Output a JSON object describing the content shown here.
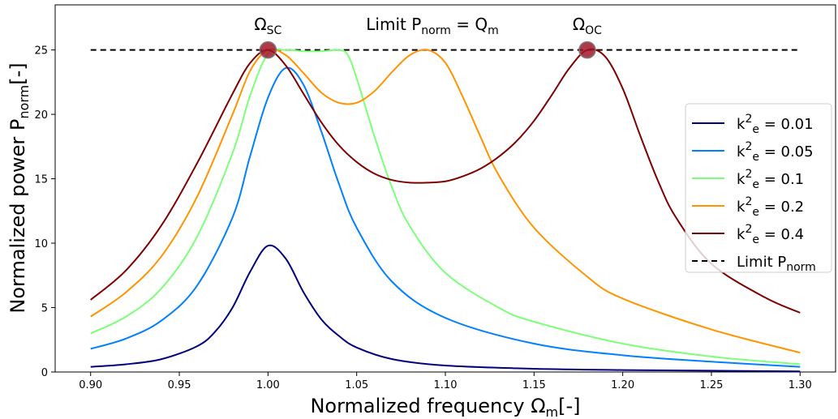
{
  "chart_data": {
    "type": "line",
    "xlabel": "Normalized frequency Ω",
    "xlabel_sub": "m",
    "xlabel_suffix": "[-]",
    "ylabel": "Normalized power P",
    "ylabel_sub": "norm",
    "ylabel_suffix": "[-]",
    "xlim": [
      0.88,
      1.32
    ],
    "ylim": [
      0,
      28.5
    ],
    "x_ticks": [
      0.9,
      0.95,
      1.0,
      1.05,
      1.1,
      1.15,
      1.2,
      1.25,
      1.3
    ],
    "x_tick_labels": [
      "0.90",
      "0.95",
      "1.00",
      "1.05",
      "1.10",
      "1.15",
      "1.20",
      "1.25",
      "1.30"
    ],
    "y_ticks": [
      0,
      5,
      10,
      15,
      20,
      25
    ],
    "y_tick_labels": [
      "0",
      "5",
      "10",
      "15",
      "20",
      "25"
    ],
    "grid": false,
    "legend_position": "right",
    "limit_line": {
      "y": 25,
      "x_range": [
        0.9,
        1.3
      ],
      "name": "Limit P",
      "name_sub": "norm",
      "color": "#000000"
    },
    "annotations": [
      {
        "base": "Ω",
        "sub": "SC",
        "x": 1.0,
        "y": 25
      },
      {
        "text": "Limit P",
        "sub": "norm",
        "suffix": " = Q",
        "sub2": "m",
        "x": 1.07,
        "y": 25
      },
      {
        "base": "Ω",
        "sub": "OC",
        "x": 1.18,
        "y": 25
      }
    ],
    "markers": [
      {
        "x": 1.0,
        "y": 25,
        "color": "#a0182a"
      },
      {
        "x": 1.18,
        "y": 25,
        "color": "#a0182a"
      }
    ],
    "series": [
      {
        "name": "k",
        "name_sub": "e",
        "name_sup": "2",
        "name_suffix": " = 0.01",
        "color": "#00007f",
        "points": [
          [
            0.9,
            0.4
          ],
          [
            0.92,
            0.6
          ],
          [
            0.94,
            1.0
          ],
          [
            0.96,
            2.0
          ],
          [
            0.97,
            3.1
          ],
          [
            0.98,
            5.0
          ],
          [
            0.99,
            7.8
          ],
          [
            1.0,
            9.8
          ],
          [
            1.01,
            8.8
          ],
          [
            1.02,
            6.2
          ],
          [
            1.03,
            4.1
          ],
          [
            1.04,
            2.8
          ],
          [
            1.05,
            1.9
          ],
          [
            1.07,
            1.0
          ],
          [
            1.1,
            0.5
          ],
          [
            1.15,
            0.25
          ],
          [
            1.2,
            0.15
          ],
          [
            1.25,
            0.1
          ],
          [
            1.3,
            0.05
          ]
        ]
      },
      {
        "name": "k",
        "name_sub": "e",
        "name_sup": "2",
        "name_suffix": " = 0.05",
        "color": "#0080ff",
        "points": [
          [
            0.9,
            1.8
          ],
          [
            0.92,
            2.6
          ],
          [
            0.94,
            4.0
          ],
          [
            0.96,
            6.7
          ],
          [
            0.98,
            12.0
          ],
          [
            0.99,
            16.8
          ],
          [
            1.0,
            21.3
          ],
          [
            1.01,
            23.6
          ],
          [
            1.02,
            22.3
          ],
          [
            1.03,
            18.7
          ],
          [
            1.04,
            14.6
          ],
          [
            1.05,
            11.2
          ],
          [
            1.07,
            7.0
          ],
          [
            1.1,
            4.2
          ],
          [
            1.15,
            2.2
          ],
          [
            1.2,
            1.3
          ],
          [
            1.25,
            0.8
          ],
          [
            1.3,
            0.4
          ]
        ]
      },
      {
        "name": "k",
        "name_sub": "e",
        "name_sup": "2",
        "name_suffix": " = 0.1",
        "color": "#7dff7a",
        "points": [
          [
            0.9,
            3.0
          ],
          [
            0.92,
            4.3
          ],
          [
            0.94,
            6.5
          ],
          [
            0.96,
            10.5
          ],
          [
            0.98,
            17.0
          ],
          [
            0.99,
            21.5
          ],
          [
            1.0,
            24.7
          ],
          [
            1.01,
            25.0
          ],
          [
            1.02,
            24.9
          ],
          [
            1.03,
            24.9
          ],
          [
            1.04,
            25.0
          ],
          [
            1.045,
            24.6
          ],
          [
            1.05,
            22.8
          ],
          [
            1.06,
            18.3
          ],
          [
            1.07,
            14.3
          ],
          [
            1.08,
            11.3
          ],
          [
            1.1,
            7.7
          ],
          [
            1.13,
            5.0
          ],
          [
            1.15,
            3.9
          ],
          [
            1.2,
            2.2
          ],
          [
            1.25,
            1.2
          ],
          [
            1.3,
            0.6
          ]
        ]
      },
      {
        "name": "k",
        "name_sub": "e",
        "name_sup": "2",
        "name_suffix": " = 0.2",
        "color": "#ff9400",
        "points": [
          [
            0.9,
            4.3
          ],
          [
            0.92,
            6.2
          ],
          [
            0.94,
            9.0
          ],
          [
            0.96,
            13.6
          ],
          [
            0.98,
            20.0
          ],
          [
            0.99,
            23.4
          ],
          [
            1.0,
            25.0
          ],
          [
            1.01,
            24.6
          ],
          [
            1.02,
            23.2
          ],
          [
            1.03,
            21.7
          ],
          [
            1.04,
            20.9
          ],
          [
            1.05,
            20.9
          ],
          [
            1.06,
            21.8
          ],
          [
            1.07,
            23.3
          ],
          [
            1.08,
            24.6
          ],
          [
            1.09,
            25.0
          ],
          [
            1.1,
            24.0
          ],
          [
            1.11,
            21.3
          ],
          [
            1.12,
            18.2
          ],
          [
            1.13,
            15.3
          ],
          [
            1.15,
            11.2
          ],
          [
            1.18,
            7.4
          ],
          [
            1.2,
            5.7
          ],
          [
            1.25,
            3.3
          ],
          [
            1.3,
            1.5
          ]
        ]
      },
      {
        "name": "k",
        "name_sub": "e",
        "name_sup": "2",
        "name_suffix": " = 0.4",
        "color": "#7f0000",
        "points": [
          [
            0.9,
            5.6
          ],
          [
            0.92,
            7.9
          ],
          [
            0.94,
            11.4
          ],
          [
            0.96,
            16.2
          ],
          [
            0.98,
            21.6
          ],
          [
            0.99,
            24.0
          ],
          [
            1.0,
            25.0
          ],
          [
            1.01,
            23.8
          ],
          [
            1.02,
            21.6
          ],
          [
            1.03,
            19.4
          ],
          [
            1.04,
            17.6
          ],
          [
            1.05,
            16.3
          ],
          [
            1.06,
            15.4
          ],
          [
            1.07,
            14.9
          ],
          [
            1.08,
            14.7
          ],
          [
            1.09,
            14.7
          ],
          [
            1.1,
            14.8
          ],
          [
            1.11,
            15.2
          ],
          [
            1.12,
            15.8
          ],
          [
            1.13,
            16.7
          ],
          [
            1.14,
            17.9
          ],
          [
            1.15,
            19.5
          ],
          [
            1.16,
            21.5
          ],
          [
            1.17,
            23.6
          ],
          [
            1.18,
            25.0
          ],
          [
            1.19,
            24.5
          ],
          [
            1.2,
            22.0
          ],
          [
            1.21,
            18.3
          ],
          [
            1.22,
            14.8
          ],
          [
            1.23,
            12.0
          ],
          [
            1.25,
            8.4
          ],
          [
            1.28,
            5.8
          ],
          [
            1.3,
            4.6
          ]
        ]
      }
    ]
  }
}
